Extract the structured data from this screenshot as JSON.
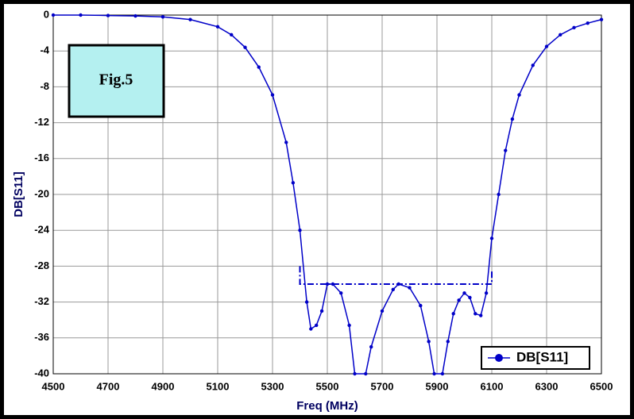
{
  "chart_data": {
    "type": "line",
    "x_label": "Freq (MHz)",
    "y_label": "DB[S11]",
    "annotation": "Fig.5",
    "xlim": [
      4500,
      6500
    ],
    "xticks": [
      4500,
      4700,
      4900,
      5100,
      5300,
      5500,
      5700,
      5900,
      6100,
      6300,
      6500
    ],
    "ylim": [
      -40,
      0
    ],
    "yticks": [
      0,
      -4,
      -8,
      -12,
      -16,
      -20,
      -24,
      -28,
      -32,
      -36,
      -40
    ],
    "grid": true,
    "legend": "lower right",
    "series": [
      {
        "name": "DB[S11]",
        "color": "#0000c8",
        "x": [
          4500,
          4600,
          4700,
          4800,
          4900,
          5000,
          5100,
          5150,
          5200,
          5250,
          5300,
          5350,
          5375,
          5400,
          5425,
          5440,
          5460,
          5480,
          5500,
          5520,
          5550,
          5580,
          5600,
          5640,
          5660,
          5700,
          5740,
          5760,
          5800,
          5840,
          5870,
          5890,
          5920,
          5940,
          5960,
          5980,
          6000,
          6020,
          6040,
          6060,
          6080,
          6100,
          6125,
          6150,
          6175,
          6200,
          6250,
          6300,
          6350,
          6400,
          6450,
          6500
        ],
        "values": [
          0,
          0,
          -0.05,
          -0.1,
          -0.2,
          -0.5,
          -1.3,
          -2.2,
          -3.6,
          -5.8,
          -8.9,
          -14.2,
          -18.7,
          -24,
          -32,
          -35,
          -34.6,
          -33,
          -30,
          -30,
          -31,
          -34.6,
          -40,
          -40,
          -37,
          -33,
          -30.6,
          -30,
          -30.4,
          -32.4,
          -36.4,
          -40,
          -40,
          -36.4,
          -33.3,
          -31.8,
          -31,
          -31.5,
          -33.3,
          -33.5,
          -31,
          -24.9,
          -20,
          -15.1,
          -11.6,
          -8.9,
          -5.6,
          -3.5,
          -2.2,
          -1.4,
          -0.9,
          -0.5
        ]
      },
      {
        "color": "#0000c8",
        "dash": "dashdot",
        "x": [
          5400,
          5400,
          6100,
          6100
        ],
        "values": [
          -28,
          -30,
          -30,
          -28.4
        ]
      }
    ]
  }
}
